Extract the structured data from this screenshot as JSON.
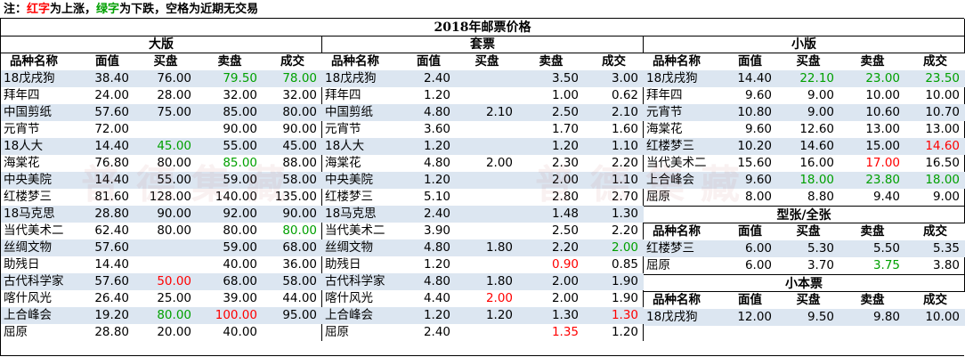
{
  "note": {
    "prefix": "注：",
    "red_word": "红字",
    "mid1": "为上涨，",
    "green_word": "绿字",
    "mid2": "为下跌，空格为近期无交易"
  },
  "main_title": "2018年邮票价格",
  "columns": [
    "品种名称",
    "面值",
    "买盘",
    "卖盘",
    "成交"
  ],
  "colors": {
    "up": "#ff0000",
    "down": "#00a000",
    "stripe": "#dce6f1"
  },
  "sections": {
    "daban": {
      "title": "大版",
      "rows": [
        {
          "name": "18戊戌狗",
          "face": "38.40",
          "buy": "76.00",
          "sell": "79.50",
          "deal": "78.00",
          "buy_c": "",
          "sell_c": "down",
          "deal_c": "down"
        },
        {
          "name": "拜年四",
          "face": "24.00",
          "buy": "28.00",
          "sell": "32.00",
          "deal": "32.00"
        },
        {
          "name": "中国剪纸",
          "face": "57.60",
          "buy": "75.00",
          "sell": "85.00",
          "deal": "80.00"
        },
        {
          "name": "元宵节",
          "face": "72.00",
          "buy": "",
          "sell": "90.00",
          "deal": "90.00"
        },
        {
          "name": "18人大",
          "face": "14.40",
          "buy": "45.00",
          "sell": "55.00",
          "deal": "45.00",
          "buy_c": "down"
        },
        {
          "name": "海棠花",
          "face": "76.80",
          "buy": "80.00",
          "sell": "85.00",
          "deal": "88.00",
          "sell_c": "down"
        },
        {
          "name": "中央美院",
          "face": "14.40",
          "buy": "55.00",
          "sell": "59.00",
          "deal": "58.00"
        },
        {
          "name": "红楼梦三",
          "face": "81.60",
          "buy": "128.00",
          "sell": "140.00",
          "deal": "135.00"
        },
        {
          "name": "18马克思",
          "face": "28.80",
          "buy": "90.00",
          "sell": "92.00",
          "deal": "90.00"
        },
        {
          "name": "当代美术二",
          "face": "62.40",
          "buy": "80.00",
          "sell": "80.00",
          "deal": "80.00",
          "deal_c": "down"
        },
        {
          "name": "丝绸文物",
          "face": "57.60",
          "buy": "",
          "sell": "59.00",
          "deal": "68.00"
        },
        {
          "name": "助残日",
          "face": "14.40",
          "buy": "",
          "sell": "40.00",
          "deal": "36.00"
        },
        {
          "name": "古代科学家",
          "face": "57.60",
          "buy": "50.00",
          "sell": "68.00",
          "deal": "58.00",
          "buy_c": "up"
        },
        {
          "name": "喀什风光",
          "face": "26.40",
          "buy": "25.00",
          "sell": "39.00",
          "deal": "44.00"
        },
        {
          "name": "上合峰会",
          "face": "19.20",
          "buy": "80.00",
          "sell": "100.00",
          "deal": "95.00",
          "buy_c": "down",
          "sell_c": "up"
        },
        {
          "name": "屈原",
          "face": "28.80",
          "buy": "20.00",
          "sell": "40.00",
          "deal": ""
        }
      ]
    },
    "taopiao": {
      "title": "套票",
      "rows": [
        {
          "name": "18戊戌狗",
          "face": "2.40",
          "buy": "",
          "sell": "3.50",
          "deal": "3.00"
        },
        {
          "name": "拜年四",
          "face": "1.20",
          "buy": "",
          "sell": "1.00",
          "deal": "0.62"
        },
        {
          "name": "中国剪纸",
          "face": "4.80",
          "buy": "2.10",
          "sell": "2.50",
          "deal": "2.10"
        },
        {
          "name": "元宵节",
          "face": "3.60",
          "buy": "",
          "sell": "1.70",
          "deal": "1.60"
        },
        {
          "name": "18人大",
          "face": "1.20",
          "buy": "",
          "sell": "1.20",
          "deal": "1.10"
        },
        {
          "name": "海棠花",
          "face": "4.80",
          "buy": "2.00",
          "sell": "2.30",
          "deal": "2.20"
        },
        {
          "name": "中央美院",
          "face": "1.20",
          "buy": "",
          "sell": "2.00",
          "deal": "1.10"
        },
        {
          "name": "红楼梦三",
          "face": "5.10",
          "buy": "",
          "sell": "2.80",
          "deal": "2.70"
        },
        {
          "name": "18马克思",
          "face": "2.40",
          "buy": "",
          "sell": "1.48",
          "deal": "1.30"
        },
        {
          "name": "当代美术二",
          "face": "3.90",
          "buy": "",
          "sell": "2.50",
          "deal": "2.20"
        },
        {
          "name": "丝绸文物",
          "face": "4.80",
          "buy": "1.80",
          "sell": "2.20",
          "deal": "2.00",
          "deal_c": "down"
        },
        {
          "name": "助残日",
          "face": "1.20",
          "buy": "",
          "sell": "0.90",
          "deal": "0.85",
          "sell_c": "up"
        },
        {
          "name": "古代科学家",
          "face": "4.80",
          "buy": "1.80",
          "sell": "2.00",
          "deal": "1.90"
        },
        {
          "name": "喀什风光",
          "face": "4.40",
          "buy": "2.00",
          "sell": "2.00",
          "deal": "1.90",
          "buy_c": "up"
        },
        {
          "name": "上合峰会",
          "face": "1.20",
          "buy": "1.20",
          "sell": "1.30",
          "deal": "1.30",
          "deal_c": "up"
        },
        {
          "name": "屈原",
          "face": "2.40",
          "buy": "",
          "sell": "1.35",
          "deal": "1.20",
          "sell_c": "up"
        }
      ]
    },
    "xiaoban": {
      "title": "小版",
      "rows": [
        {
          "name": "18戊戌狗",
          "face": "14.40",
          "buy": "22.10",
          "sell": "23.00",
          "deal": "23.50",
          "buy_c": "down",
          "sell_c": "down",
          "deal_c": "down"
        },
        {
          "name": "拜年四",
          "face": "9.60",
          "buy": "9.00",
          "sell": "10.00",
          "deal": "10.00"
        },
        {
          "name": "元宵节",
          "face": "10.80",
          "buy": "9.00",
          "sell": "10.60",
          "deal": "10.70"
        },
        {
          "name": "海棠花",
          "face": "9.60",
          "buy": "12.60",
          "sell": "13.00",
          "deal": "13.00"
        },
        {
          "name": "红楼梦三",
          "face": "10.20",
          "buy": "14.60",
          "sell": "15.00",
          "deal": "14.60",
          "deal_c": "up"
        },
        {
          "name": "当代美术二",
          "face": "15.60",
          "buy": "16.00",
          "sell": "17.00",
          "deal": "16.50",
          "sell_c": "up"
        },
        {
          "name": "上合峰会",
          "face": "9.60",
          "buy": "18.00",
          "sell": "23.80",
          "deal": "18.00",
          "buy_c": "down",
          "sell_c": "down",
          "deal_c": "down"
        },
        {
          "name": "屈原",
          "face": "8.00",
          "buy": "8.80",
          "sell": "9.40",
          "deal": "9.00"
        }
      ]
    },
    "xingzhang": {
      "title": "型张/全张",
      "rows": [
        {
          "name": "红楼梦三",
          "face": "6.00",
          "buy": "5.30",
          "sell": "5.50",
          "deal": "5.35"
        },
        {
          "name": "屈原",
          "face": "6.00",
          "buy": "3.70",
          "sell": "3.75",
          "deal": "3.80",
          "sell_c": "down"
        }
      ]
    },
    "xiaoben": {
      "title": "小本票",
      "rows": [
        {
          "name": "18戊戌狗",
          "face": "12.00",
          "buy": "9.50",
          "sell": "9.80",
          "deal": "10.00"
        }
      ]
    }
  },
  "watermark": "普德集藏"
}
